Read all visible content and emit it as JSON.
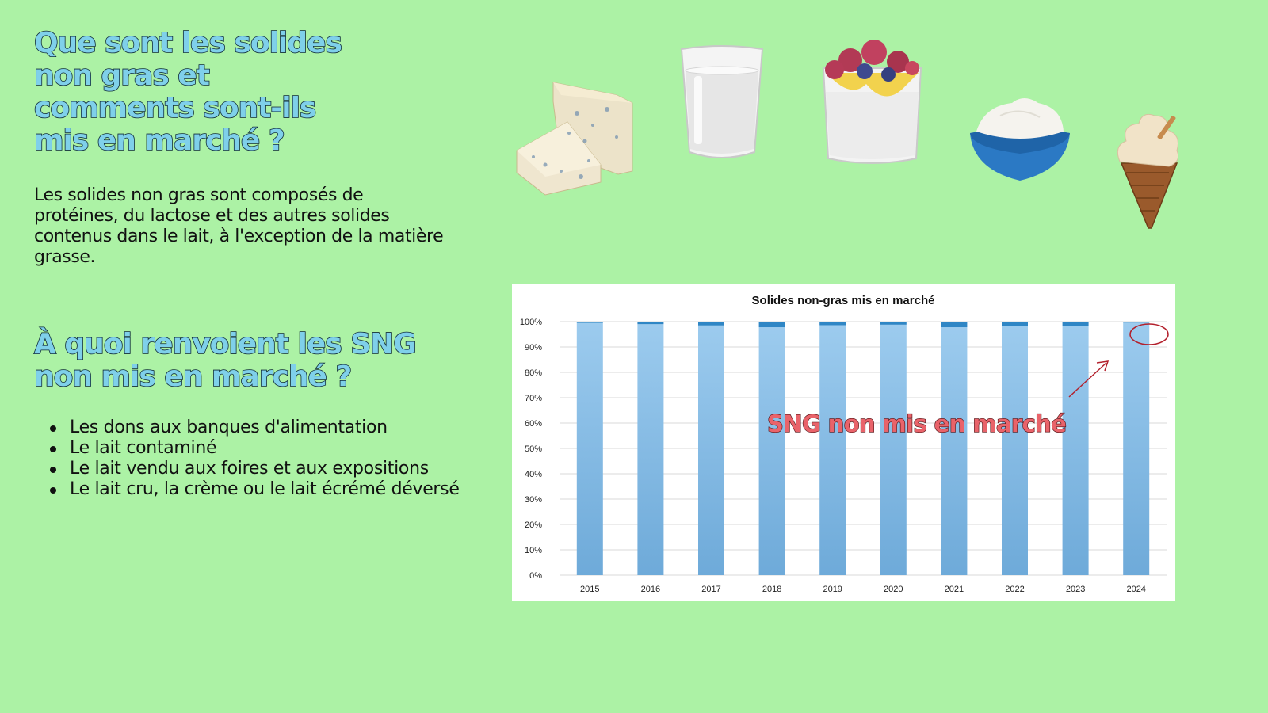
{
  "headings": {
    "h1_lines": [
      "Que sont les solides",
      "non gras et",
      "comments sont-ils",
      "mis en marché ?"
    ],
    "h2_lines": [
      "À quoi renvoient les SNG",
      "non mis en marché ?"
    ]
  },
  "intro": "Les solides non gras sont composés de protéines, du lactose et des autres solides contenus dans le lait, à l'exception de la matière grasse.",
  "bullets": [
    "Les dons aux banques d'alimentation",
    "Le lait contaminé",
    "Le lait vendu aux foires et aux expositions",
    "Le lait cru, la crème ou le lait écrémé déversé"
  ],
  "images": [
    "cheese",
    "glass-of-milk",
    "yogurt-parfait",
    "bowl-of-cream",
    "ice-cream-cone"
  ],
  "chart_data": {
    "type": "bar",
    "stacked": true,
    "title": "Solides non-gras  mis en marché",
    "categories": [
      "2015",
      "2016",
      "2017",
      "2018",
      "2019",
      "2020",
      "2021",
      "2022",
      "2023",
      "2024"
    ],
    "series": [
      {
        "values": [
          99.5,
          99.0,
          98.5,
          97.8,
          98.6,
          98.8,
          97.8,
          98.4,
          98.2,
          99.6
        ],
        "color": "#8fc1e6"
      },
      {
        "values": [
          0.5,
          1.0,
          1.5,
          2.2,
          1.4,
          1.2,
          2.2,
          1.6,
          1.8,
          0.4
        ],
        "color": "#2f86c5"
      }
    ],
    "yticks": [
      "0%",
      "10%",
      "20%",
      "30%",
      "40%",
      "50%",
      "60%",
      "70%",
      "80%",
      "90%",
      "100%"
    ],
    "ylim": [
      0,
      100
    ],
    "grid": true,
    "annotation": "SNG non mis en marché",
    "annotation_color": "#e9636a"
  }
}
